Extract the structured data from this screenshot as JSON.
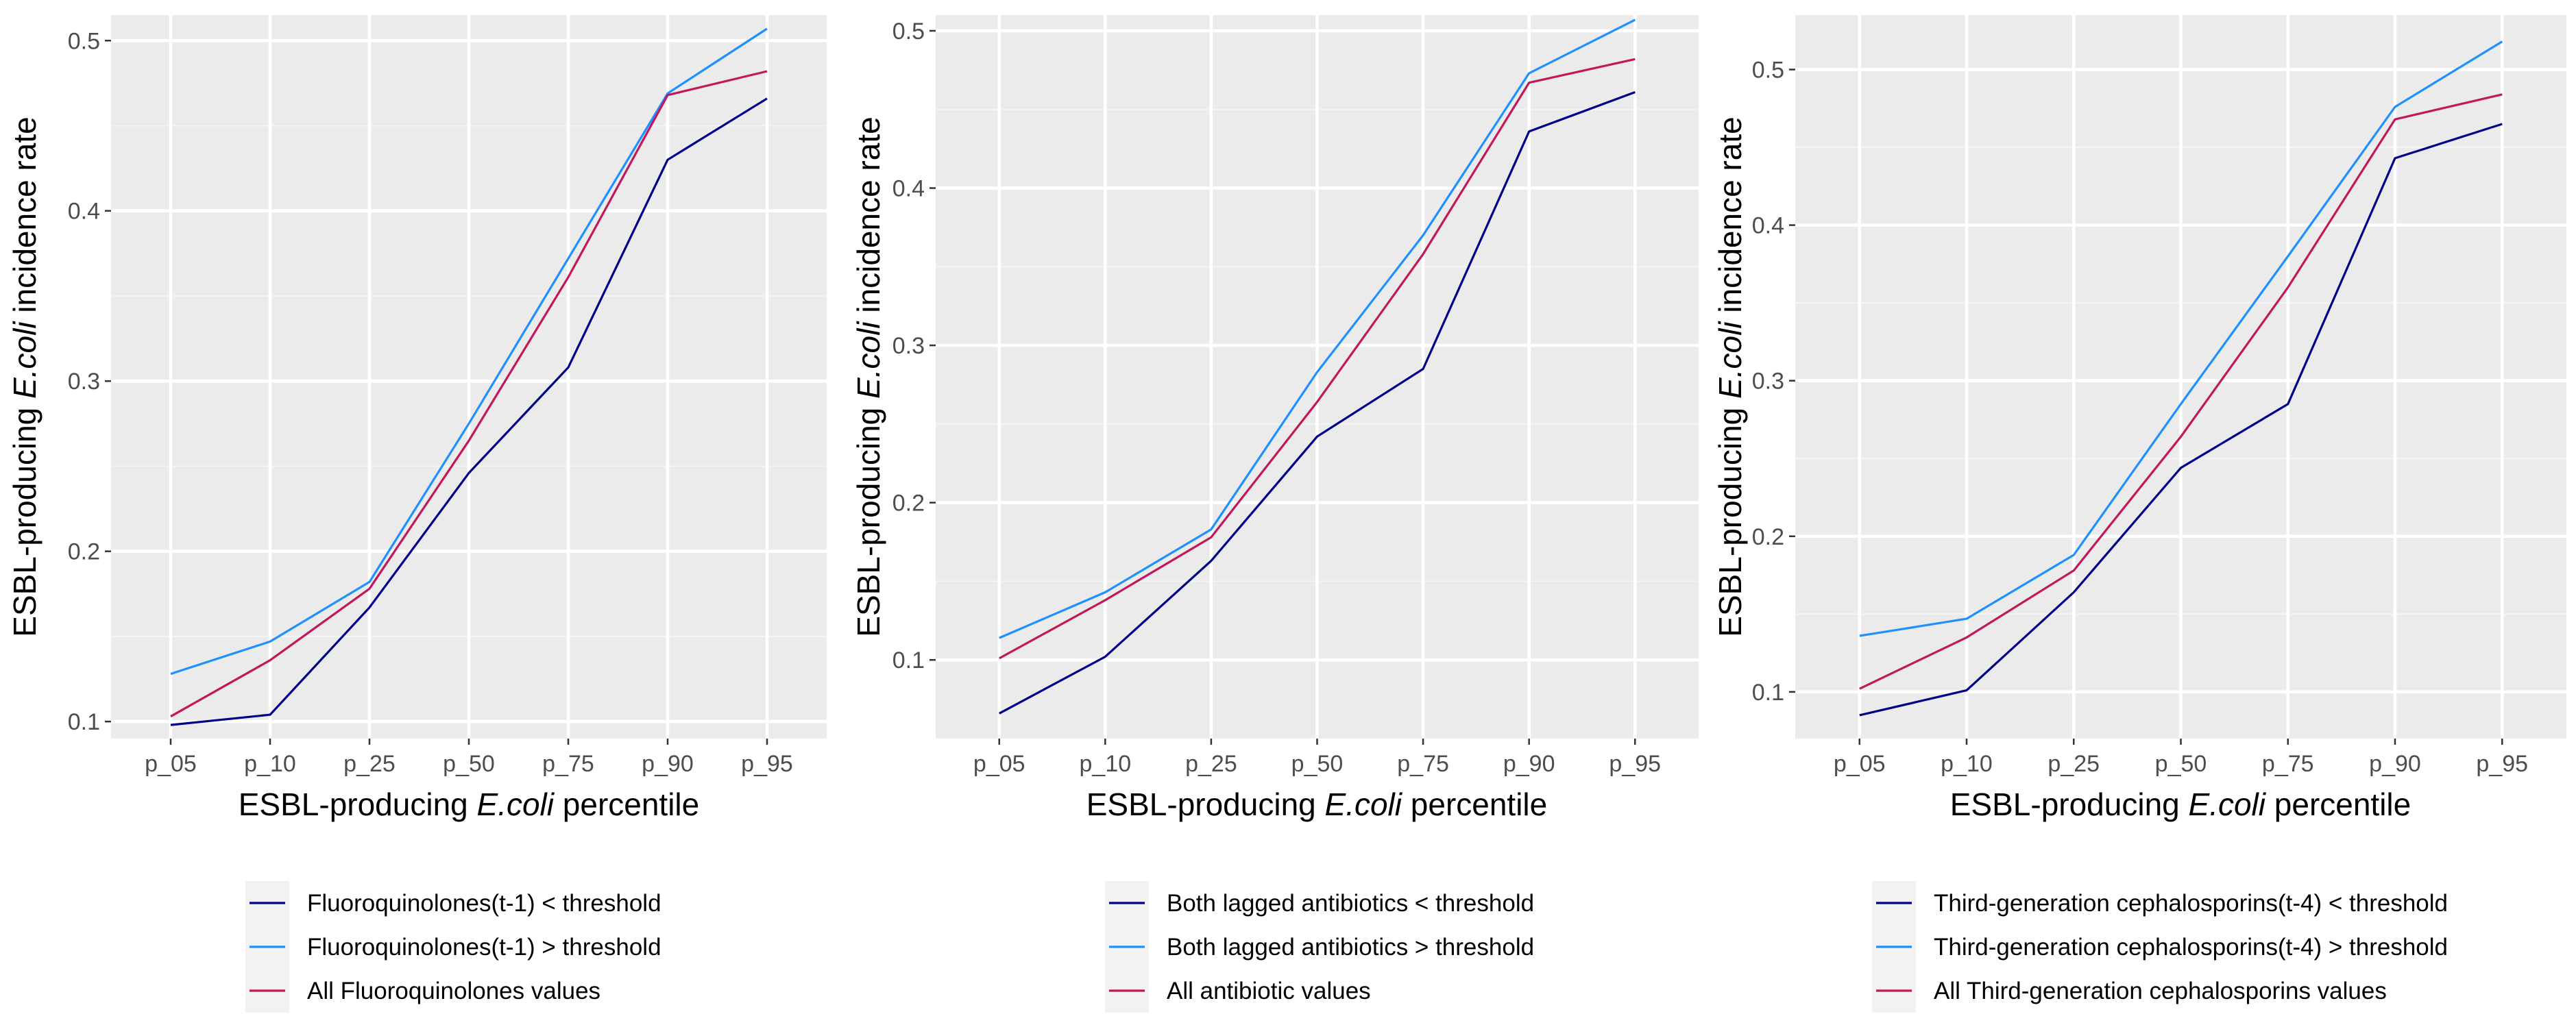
{
  "chart_data": [
    {
      "type": "line",
      "title": "",
      "xlabel": {
        "prefix": "ESBL-producing ",
        "italic": "E.coli",
        "suffix": " percentile"
      },
      "ylabel": {
        "prefix": "ESBL-producing ",
        "italic": "E.coli",
        "suffix": " incidence rate"
      },
      "categories": [
        "p_05",
        "p_10",
        "p_25",
        "p_50",
        "p_75",
        "p_90",
        "p_95"
      ],
      "ylim": [
        0.09,
        0.515
      ],
      "yticks": [
        0.1,
        0.2,
        0.3,
        0.4,
        0.5
      ],
      "ytick_labels": [
        "0.1",
        "0.2",
        "0.3",
        "0.4",
        "0.5"
      ],
      "grid": true,
      "legend_position": "bottom",
      "series": [
        {
          "name": "Fluoroquinolones(t-1) < threshold",
          "color": "#00008b",
          "values": [
            0.098,
            0.104,
            0.167,
            0.246,
            0.308,
            0.43,
            0.466
          ]
        },
        {
          "name": "Fluoroquinolones(t-1) > threshold",
          "color": "#1e90ff",
          "values": [
            0.128,
            0.147,
            0.182,
            0.275,
            0.372,
            0.469,
            0.507
          ]
        },
        {
          "name": "All Fluoroquinolones values",
          "color": "#c2185b",
          "values": [
            0.103,
            0.136,
            0.178,
            0.265,
            0.361,
            0.468,
            0.482
          ]
        }
      ]
    },
    {
      "type": "line",
      "title": "",
      "xlabel": {
        "prefix": "ESBL-producing ",
        "italic": "E.coli",
        "suffix": " percentile"
      },
      "ylabel": {
        "prefix": "ESBL-producing ",
        "italic": "E.coli",
        "suffix": " incidence rate"
      },
      "categories": [
        "p_05",
        "p_10",
        "p_25",
        "p_50",
        "p_75",
        "p_90",
        "p_95"
      ],
      "ylim": [
        0.05,
        0.51
      ],
      "yticks": [
        0.1,
        0.2,
        0.3,
        0.4,
        0.5
      ],
      "ytick_labels": [
        "0.1",
        "0.2",
        "0.3",
        "0.4",
        "0.5"
      ],
      "grid": true,
      "legend_position": "bottom",
      "series": [
        {
          "name": "Both lagged antibiotics < threshold",
          "color": "#00008b",
          "values": [
            0.066,
            0.102,
            0.163,
            0.242,
            0.285,
            0.436,
            0.461
          ]
        },
        {
          "name": "Both lagged antibiotics > threshold",
          "color": "#1e90ff",
          "values": [
            0.114,
            0.143,
            0.183,
            0.283,
            0.37,
            0.473,
            0.507
          ]
        },
        {
          "name": "All antibiotic values",
          "color": "#c2185b",
          "values": [
            0.101,
            0.138,
            0.178,
            0.264,
            0.358,
            0.467,
            0.482
          ]
        }
      ]
    },
    {
      "type": "line",
      "title": "",
      "xlabel": {
        "prefix": "ESBL-producing ",
        "italic": "E.coli",
        "suffix": " percentile"
      },
      "ylabel": {
        "prefix": "ESBL-producing ",
        "italic": "E.coli",
        "suffix": " incidence rate"
      },
      "categories": [
        "p_05",
        "p_10",
        "p_25",
        "p_50",
        "p_75",
        "p_90",
        "p_95"
      ],
      "ylim": [
        0.07,
        0.535
      ],
      "yticks": [
        0.1,
        0.2,
        0.3,
        0.4,
        0.5
      ],
      "ytick_labels": [
        "0.1",
        "0.2",
        "0.3",
        "0.4",
        "0.5"
      ],
      "grid": true,
      "legend_position": "bottom",
      "series": [
        {
          "name": "Third-generation cephalosporins(t-4) < threshold",
          "color": "#00008b",
          "values": [
            0.085,
            0.101,
            0.164,
            0.244,
            0.285,
            0.443,
            0.465
          ]
        },
        {
          "name": "Third-generation cephalosporins(t-4) > threshold",
          "color": "#1e90ff",
          "values": [
            0.136,
            0.147,
            0.188,
            0.285,
            0.38,
            0.476,
            0.518
          ]
        },
        {
          "name": "All Third-generation cephalosporins values",
          "color": "#c2185b",
          "values": [
            0.102,
            0.135,
            0.178,
            0.264,
            0.36,
            0.468,
            0.484
          ]
        }
      ]
    }
  ]
}
